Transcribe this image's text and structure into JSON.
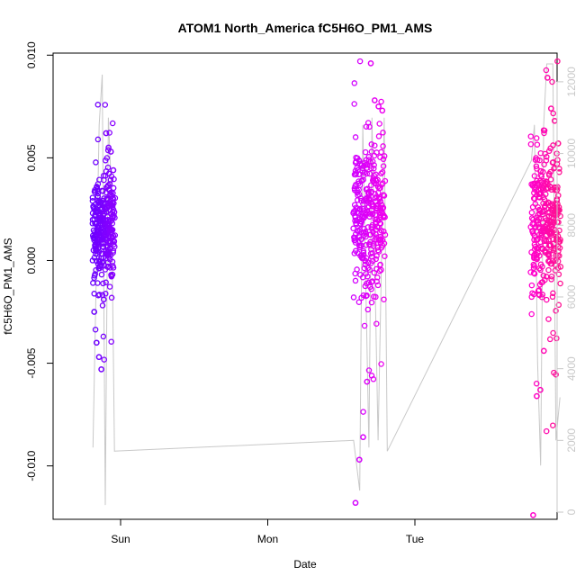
{
  "chart_data": {
    "type": "scatter",
    "title": "ATOM1 North_America fC5H6O_PM1_AMS",
    "xlabel": "Date",
    "ylabel": "fC5H6O_PM1_AMS",
    "x_ticks": [
      "Sun",
      "Mon",
      "Tue"
    ],
    "y_ticks": [
      "-0.010",
      "-0.005",
      "0.000",
      "0.005",
      "0.010"
    ],
    "y_range": [
      -0.0126,
      0.0101
    ],
    "y2_ticks": [
      "0",
      "2000",
      "4000",
      "6000",
      "8000",
      "10000",
      "12000"
    ],
    "y2_range": [
      -200,
      12800
    ],
    "y2_color": "#c8c8c8",
    "grid": false,
    "legend": "none",
    "point_colors": [
      "#6a00ff",
      "#d400ff",
      "#ff0aa0"
    ],
    "series": [
      {
        "x": [
          "Sat 19:30",
          "Sat 23:00"
        ],
        "summary": {
          "median": 0.0015,
          "q1": 0.0006,
          "q3": 0.0023
        },
        "notable_points": [
          -0.0025,
          -0.004,
          -0.0047,
          -0.0053,
          -0.0019,
          0.0062,
          0.0055,
          0.0053,
          0.0044
        ],
        "color_from": "#6a00ff",
        "color_to": "#8a00ff"
      },
      {
        "x": [
          "Mon 14:00",
          "Mon 19:00"
        ],
        "summary": {
          "median": 0.0021,
          "q1": 0.0008,
          "q3": 0.0033
        },
        "notable_points": [
          -0.0118,
          -0.0097,
          -0.0086,
          -0.0059,
          0.0096,
          0.0078,
          0.0075,
          0.0073
        ],
        "color_from": "#d000ff",
        "color_to": "#ee00ee"
      },
      {
        "x": [
          "Tue 19:00",
          "Tue 23:40"
        ],
        "summary": {
          "median": 0.0018,
          "q1": 0.0004,
          "q3": 0.0028
        },
        "notable_points": [
          -0.0124,
          -0.0066,
          -0.0063,
          -0.0044,
          0.0089,
          0.0074,
          0.0068,
          0.0057
        ],
        "color_from": "#ff00d0",
        "color_to": "#ff1090"
      }
    ],
    "secondary_line": {
      "description": "grey line on right axis",
      "points": [
        [
          "Sat 19:30",
          1800
        ],
        [
          "Sat 20:30",
          10800
        ],
        [
          "Sat 21:00",
          12200
        ],
        [
          "Sat 21:30",
          200
        ],
        [
          "Sat 22:00",
          11000
        ],
        [
          "Sat 22:30",
          9000
        ],
        [
          "Sat 23:00",
          1700
        ],
        [
          "Mon 14:00",
          2000
        ],
        [
          "Mon 15:00",
          600
        ],
        [
          "Mon 15:30",
          10800
        ],
        [
          "Mon 16:30",
          1800
        ],
        [
          "Mon 17:00",
          11000
        ],
        [
          "Mon 18:00",
          2000
        ],
        [
          "Mon 19:00",
          11000
        ],
        [
          "Mon 19:30",
          1700
        ],
        [
          "Tue 19:00",
          9800
        ],
        [
          "Tue 19:30",
          10800
        ],
        [
          "Tue 20:00",
          4200
        ],
        [
          "Tue 20:30",
          1300
        ],
        [
          "Tue 21:00",
          10800
        ],
        [
          "Tue 21:30",
          12500
        ],
        [
          "Tue 22:30",
          12500
        ],
        [
          "Tue 23:00",
          2000
        ],
        [
          "Tue 23:40",
          3200
        ]
      ]
    }
  }
}
